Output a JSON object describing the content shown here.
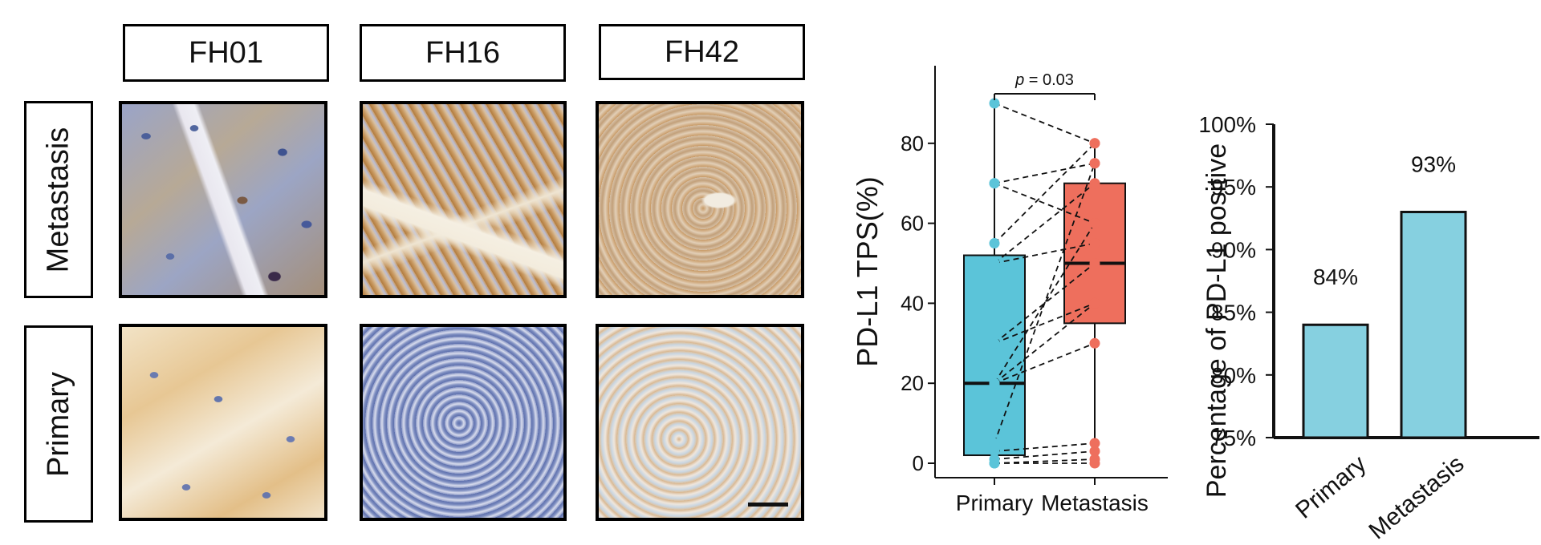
{
  "columns": [
    "FH01",
    "FH16",
    "FH42"
  ],
  "rows": [
    "Metastasis",
    "Primary"
  ],
  "chart_data": [
    {
      "type": "box",
      "ylabel": "PD-L1 TPS(%)",
      "categories": [
        "Primary",
        "Metastasis"
      ],
      "yticks": [
        0,
        20,
        40,
        60,
        80
      ],
      "ylim": [
        -2,
        98
      ],
      "boxes": [
        {
          "name": "Primary",
          "q1": 2,
          "median": 20,
          "q3": 52,
          "whisker_low": 0,
          "whisker_high": 90,
          "color": "#5bc4d9"
        },
        {
          "name": "Metastasis",
          "q1": 35,
          "median": 50,
          "q3": 70,
          "whisker_low": 0,
          "whisker_high": 80,
          "color": "#ee6f5d"
        }
      ],
      "pairs": [
        [
          90,
          80
        ],
        [
          70,
          75
        ],
        [
          70,
          60
        ],
        [
          55,
          80
        ],
        [
          50,
          70
        ],
        [
          50,
          55
        ],
        [
          30,
          50
        ],
        [
          30,
          40
        ],
        [
          20,
          60
        ],
        [
          20,
          40
        ],
        [
          20,
          30
        ],
        [
          5,
          75
        ],
        [
          3,
          5
        ],
        [
          1,
          3
        ],
        [
          0,
          1
        ],
        [
          0,
          0
        ]
      ],
      "annotation": {
        "text_prefix": "p",
        "text_suffix": " = 0.03"
      },
      "colors": {
        "primary": "#5bc4d9",
        "metastasis": "#ee6f5d"
      }
    },
    {
      "type": "bar",
      "ylabel": "Percentage of PD-L1 positive",
      "categories": [
        "Primary",
        "Metastasis"
      ],
      "values": [
        84,
        93
      ],
      "data_labels": [
        "84%",
        "93%"
      ],
      "ylim": [
        75,
        100
      ],
      "yticks": [
        "75%",
        "80%",
        "85%",
        "90%",
        "95%",
        "100%"
      ],
      "color": "#86d0e0"
    }
  ]
}
